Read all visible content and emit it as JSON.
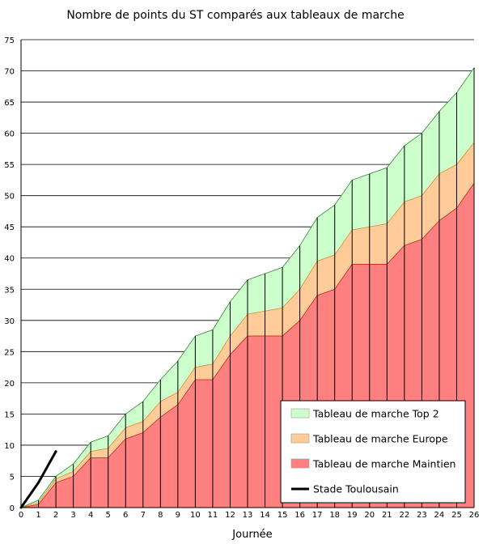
{
  "chart_data": {
    "type": "area",
    "title": "Nombre de points du ST comparés aux tableaux de marche",
    "xlabel": "Journée",
    "ylabel": "",
    "x": [
      0,
      1,
      2,
      3,
      4,
      5,
      6,
      7,
      8,
      9,
      10,
      11,
      12,
      13,
      14,
      15,
      16,
      17,
      18,
      19,
      20,
      21,
      22,
      23,
      24,
      25,
      26
    ],
    "xlim": [
      0,
      26
    ],
    "ylim": [
      0,
      75
    ],
    "yticks": [
      0,
      5,
      10,
      15,
      20,
      25,
      30,
      35,
      40,
      45,
      50,
      55,
      60,
      65,
      70,
      75
    ],
    "grid": true,
    "legend_position": "bottom-right",
    "series": [
      {
        "name": "Tableau de marche Top 2",
        "kind": "area",
        "color": "#ccffcc",
        "values": [
          0,
          1.2,
          5,
          7,
          10.5,
          11.5,
          15,
          17,
          20.5,
          23.5,
          27.5,
          28.5,
          33,
          36.5,
          37.5,
          38.5,
          42,
          46.5,
          48.5,
          52.5,
          53.5,
          54.5,
          58,
          60,
          63.5,
          66.5,
          70.5
        ]
      },
      {
        "name": "Tableau de marche Europe",
        "kind": "area",
        "color": "#ffcc99",
        "values": [
          0,
          0.8,
          4.6,
          5.8,
          9,
          9.5,
          12.8,
          13.8,
          17,
          18.5,
          22.5,
          23,
          27.5,
          31,
          31.5,
          32,
          35,
          39.5,
          40.5,
          44.5,
          45,
          45.5,
          49,
          50,
          53.5,
          55,
          58.5
        ]
      },
      {
        "name": "Tableau de marche Maintien",
        "kind": "area",
        "color": "#ff8080",
        "values": [
          0,
          0.5,
          4,
          5,
          8,
          8,
          11,
          12,
          14.5,
          16.5,
          20.5,
          20.5,
          24.5,
          27.5,
          27.5,
          27.5,
          30,
          34,
          35,
          39,
          39,
          39,
          42,
          43,
          46,
          48,
          52
        ]
      },
      {
        "name": "Stade Toulousain",
        "kind": "line",
        "color": "#000000",
        "x": [
          0,
          1,
          2
        ],
        "values": [
          0,
          4,
          9
        ]
      }
    ]
  }
}
